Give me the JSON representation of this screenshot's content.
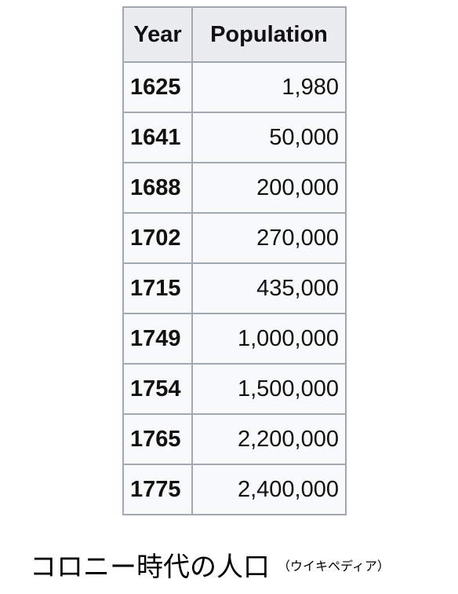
{
  "chart_data": {
    "type": "table",
    "columns": [
      "Year",
      "Population"
    ],
    "rows": [
      {
        "year": "1625",
        "population": "1,980"
      },
      {
        "year": "1641",
        "population": "50,000"
      },
      {
        "year": "1688",
        "population": "200,000"
      },
      {
        "year": "1702",
        "population": "270,000"
      },
      {
        "year": "1715",
        "population": "435,000"
      },
      {
        "year": "1749",
        "population": "1,000,000"
      },
      {
        "year": "1754",
        "population": "1,500,000"
      },
      {
        "year": "1765",
        "population": "2,200,000"
      },
      {
        "year": "1775",
        "population": "2,400,000"
      }
    ]
  },
  "caption": {
    "main": "コロニー時代の人口",
    "source": "（ウイキペディア）"
  },
  "colors": {
    "header_bg": "#eaecf0",
    "cell_bg": "#f8f9fa",
    "border": "#a2a9b1"
  }
}
